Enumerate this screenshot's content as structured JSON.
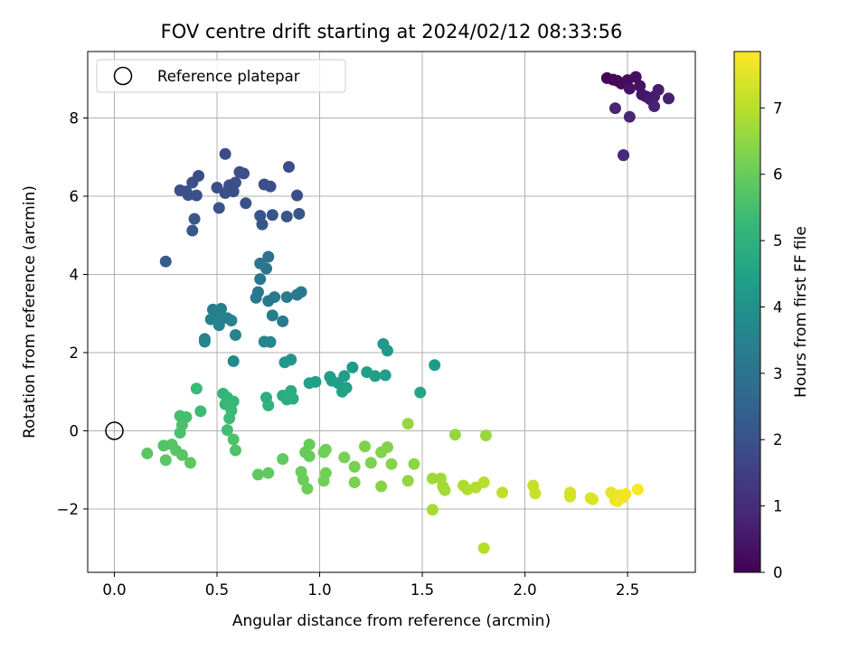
{
  "chart_data": {
    "type": "scatter",
    "title": "FOV centre drift starting at 2024/02/12 08:33:56",
    "xlabel": "Angular distance from reference (arcmin)",
    "ylabel": "Rotation from reference (arcmin)",
    "xlim": [
      -0.13,
      2.83
    ],
    "ylim": [
      -3.62,
      9.7
    ],
    "xticks": [
      0.0,
      0.5,
      1.0,
      1.5,
      2.0,
      2.5
    ],
    "xtick_labels": [
      "0.0",
      "0.5",
      "1.0",
      "1.5",
      "2.0",
      "2.5"
    ],
    "yticks": [
      -2,
      0,
      2,
      4,
      6,
      8
    ],
    "ytick_labels": [
      "−2",
      "0",
      "2",
      "4",
      "6",
      "8"
    ],
    "grid": true,
    "legend": {
      "placement": "top-left",
      "entries": [
        "Reference platepar"
      ]
    },
    "colorbar": {
      "label": "Hours from first FF file",
      "range": [
        0,
        7.85
      ],
      "ticks": [
        0,
        1,
        2,
        3,
        4,
        5,
        6,
        7
      ],
      "tick_labels": [
        "0",
        "1",
        "2",
        "3",
        "4",
        "5",
        "6",
        "7"
      ],
      "colormap": "viridis",
      "colors": [
        "#440154",
        "#482878",
        "#3e4989",
        "#31688e",
        "#26828e",
        "#1f9e89",
        "#35b779",
        "#6ece58",
        "#b5de2b",
        "#fde725"
      ]
    },
    "reference_point": {
      "x": 0.0,
      "y": 0.0
    },
    "points": [
      {
        "x": 2.4,
        "y": 9.02,
        "t": 0.05
      },
      {
        "x": 2.43,
        "y": 8.98,
        "t": 0.1
      },
      {
        "x": 2.45,
        "y": 8.95,
        "t": 0.15
      },
      {
        "x": 2.47,
        "y": 8.88,
        "t": 0.2
      },
      {
        "x": 2.5,
        "y": 8.97,
        "t": 0.25
      },
      {
        "x": 2.54,
        "y": 9.05,
        "t": 0.3
      },
      {
        "x": 2.56,
        "y": 8.82,
        "t": 0.35
      },
      {
        "x": 2.51,
        "y": 8.75,
        "t": 0.4
      },
      {
        "x": 2.57,
        "y": 8.6,
        "t": 0.45
      },
      {
        "x": 2.59,
        "y": 8.55,
        "t": 0.5
      },
      {
        "x": 2.61,
        "y": 8.48,
        "t": 0.55
      },
      {
        "x": 2.63,
        "y": 8.55,
        "t": 0.6
      },
      {
        "x": 2.65,
        "y": 8.72,
        "t": 0.65
      },
      {
        "x": 2.7,
        "y": 8.5,
        "t": 0.7
      },
      {
        "x": 2.63,
        "y": 8.3,
        "t": 0.75
      },
      {
        "x": 2.44,
        "y": 8.25,
        "t": 0.8
      },
      {
        "x": 2.51,
        "y": 8.03,
        "t": 0.85
      },
      {
        "x": 2.48,
        "y": 7.05,
        "t": 0.9
      },
      {
        "x": 2.48,
        "y": 7.05,
        "t": 0.95
      },
      {
        "x": 0.54,
        "y": 7.08,
        "t": 1.8
      },
      {
        "x": 0.61,
        "y": 6.62,
        "t": 1.85
      },
      {
        "x": 0.63,
        "y": 6.58,
        "t": 1.9
      },
      {
        "x": 0.85,
        "y": 6.75,
        "t": 1.85
      },
      {
        "x": 0.41,
        "y": 6.52,
        "t": 1.85
      },
      {
        "x": 0.38,
        "y": 6.35,
        "t": 1.9
      },
      {
        "x": 0.32,
        "y": 6.15,
        "t": 1.95
      },
      {
        "x": 0.35,
        "y": 6.12,
        "t": 1.95
      },
      {
        "x": 0.36,
        "y": 6.03,
        "t": 2.0
      },
      {
        "x": 0.4,
        "y": 6.02,
        "t": 2.0
      },
      {
        "x": 0.5,
        "y": 6.22,
        "t": 1.9
      },
      {
        "x": 0.54,
        "y": 6.08,
        "t": 1.95
      },
      {
        "x": 0.56,
        "y": 6.28,
        "t": 1.9
      },
      {
        "x": 0.58,
        "y": 6.12,
        "t": 1.95
      },
      {
        "x": 0.59,
        "y": 6.35,
        "t": 1.9
      },
      {
        "x": 0.73,
        "y": 6.3,
        "t": 1.9
      },
      {
        "x": 0.76,
        "y": 6.25,
        "t": 1.9
      },
      {
        "x": 0.89,
        "y": 6.02,
        "t": 1.95
      },
      {
        "x": 0.64,
        "y": 5.82,
        "t": 2.0
      },
      {
        "x": 0.51,
        "y": 5.7,
        "t": 2.05
      },
      {
        "x": 0.71,
        "y": 5.5,
        "t": 2.05
      },
      {
        "x": 0.77,
        "y": 5.52,
        "t": 2.05
      },
      {
        "x": 0.84,
        "y": 5.48,
        "t": 2.1
      },
      {
        "x": 0.9,
        "y": 5.55,
        "t": 2.1
      },
      {
        "x": 0.72,
        "y": 5.28,
        "t": 2.1
      },
      {
        "x": 0.39,
        "y": 5.42,
        "t": 2.1
      },
      {
        "x": 0.38,
        "y": 5.12,
        "t": 2.15
      },
      {
        "x": 0.25,
        "y": 4.33,
        "t": 2.25
      },
      {
        "x": 0.75,
        "y": 4.45,
        "t": 3.0
      },
      {
        "x": 0.71,
        "y": 4.28,
        "t": 3.05
      },
      {
        "x": 0.74,
        "y": 4.15,
        "t": 3.05
      },
      {
        "x": 0.71,
        "y": 3.88,
        "t": 3.1
      },
      {
        "x": 0.7,
        "y": 3.55,
        "t": 3.15
      },
      {
        "x": 0.69,
        "y": 3.4,
        "t": 3.2
      },
      {
        "x": 0.75,
        "y": 3.32,
        "t": 3.2
      },
      {
        "x": 0.78,
        "y": 3.42,
        "t": 3.2
      },
      {
        "x": 0.84,
        "y": 3.42,
        "t": 3.2
      },
      {
        "x": 0.89,
        "y": 3.48,
        "t": 3.2
      },
      {
        "x": 0.91,
        "y": 3.55,
        "t": 3.2
      },
      {
        "x": 0.77,
        "y": 2.95,
        "t": 3.3
      },
      {
        "x": 0.82,
        "y": 2.8,
        "t": 3.3
      },
      {
        "x": 0.48,
        "y": 3.1,
        "t": 3.4
      },
      {
        "x": 0.52,
        "y": 3.12,
        "t": 3.4
      },
      {
        "x": 0.47,
        "y": 2.85,
        "t": 3.45
      },
      {
        "x": 0.5,
        "y": 2.92,
        "t": 3.45
      },
      {
        "x": 0.51,
        "y": 2.7,
        "t": 3.5
      },
      {
        "x": 0.55,
        "y": 2.88,
        "t": 3.45
      },
      {
        "x": 0.57,
        "y": 2.82,
        "t": 3.5
      },
      {
        "x": 0.59,
        "y": 2.45,
        "t": 3.5
      },
      {
        "x": 0.44,
        "y": 2.35,
        "t": 3.55
      },
      {
        "x": 0.44,
        "y": 2.28,
        "t": 3.55
      },
      {
        "x": 0.73,
        "y": 2.28,
        "t": 3.6
      },
      {
        "x": 0.76,
        "y": 2.27,
        "t": 3.6
      },
      {
        "x": 0.58,
        "y": 1.78,
        "t": 3.7
      },
      {
        "x": 0.83,
        "y": 1.75,
        "t": 4.1
      },
      {
        "x": 0.86,
        "y": 1.82,
        "t": 4.1
      },
      {
        "x": 1.31,
        "y": 2.22,
        "t": 4.2
      },
      {
        "x": 1.33,
        "y": 2.05,
        "t": 4.2
      },
      {
        "x": 1.56,
        "y": 1.68,
        "t": 4.3
      },
      {
        "x": 1.16,
        "y": 1.62,
        "t": 4.3
      },
      {
        "x": 1.12,
        "y": 1.4,
        "t": 4.35
      },
      {
        "x": 1.05,
        "y": 1.38,
        "t": 4.35
      },
      {
        "x": 1.06,
        "y": 1.28,
        "t": 4.4
      },
      {
        "x": 1.09,
        "y": 1.22,
        "t": 4.4
      },
      {
        "x": 0.98,
        "y": 1.25,
        "t": 4.45
      },
      {
        "x": 0.95,
        "y": 1.22,
        "t": 4.45
      },
      {
        "x": 1.13,
        "y": 1.1,
        "t": 4.45
      },
      {
        "x": 1.11,
        "y": 1.0,
        "t": 4.5
      },
      {
        "x": 1.23,
        "y": 1.5,
        "t": 4.4
      },
      {
        "x": 1.27,
        "y": 1.4,
        "t": 4.4
      },
      {
        "x": 1.32,
        "y": 1.42,
        "t": 4.4
      },
      {
        "x": 1.49,
        "y": 0.98,
        "t": 4.6
      },
      {
        "x": 0.86,
        "y": 1.02,
        "t": 4.8
      },
      {
        "x": 0.82,
        "y": 0.9,
        "t": 4.85
      },
      {
        "x": 0.84,
        "y": 0.8,
        "t": 4.9
      },
      {
        "x": 0.87,
        "y": 0.82,
        "t": 4.9
      },
      {
        "x": 0.74,
        "y": 0.85,
        "t": 4.95
      },
      {
        "x": 0.75,
        "y": 0.65,
        "t": 5.0
      },
      {
        "x": 0.53,
        "y": 0.95,
        "t": 5.2
      },
      {
        "x": 0.55,
        "y": 0.85,
        "t": 5.2
      },
      {
        "x": 0.54,
        "y": 0.68,
        "t": 5.25
      },
      {
        "x": 0.58,
        "y": 0.75,
        "t": 5.25
      },
      {
        "x": 0.57,
        "y": 0.52,
        "t": 5.3
      },
      {
        "x": 0.56,
        "y": 0.32,
        "t": 5.35
      },
      {
        "x": 0.4,
        "y": 1.08,
        "t": 5.3
      },
      {
        "x": 0.42,
        "y": 0.5,
        "t": 5.35
      },
      {
        "x": 0.55,
        "y": 0.02,
        "t": 5.45
      },
      {
        "x": 0.32,
        "y": 0.38,
        "t": 5.5
      },
      {
        "x": 0.35,
        "y": 0.35,
        "t": 5.5
      },
      {
        "x": 0.33,
        "y": 0.15,
        "t": 5.55
      },
      {
        "x": 0.32,
        "y": -0.05,
        "t": 5.6
      },
      {
        "x": 0.58,
        "y": -0.22,
        "t": 5.6
      },
      {
        "x": 0.59,
        "y": -0.5,
        "t": 5.65
      },
      {
        "x": 0.24,
        "y": -0.38,
        "t": 5.7
      },
      {
        "x": 0.28,
        "y": -0.35,
        "t": 5.7
      },
      {
        "x": 0.3,
        "y": -0.5,
        "t": 5.75
      },
      {
        "x": 0.33,
        "y": -0.62,
        "t": 5.75
      },
      {
        "x": 0.16,
        "y": -0.58,
        "t": 5.8
      },
      {
        "x": 0.25,
        "y": -0.75,
        "t": 5.8
      },
      {
        "x": 0.37,
        "y": -0.82,
        "t": 5.85
      },
      {
        "x": 0.7,
        "y": -1.12,
        "t": 5.9
      },
      {
        "x": 0.75,
        "y": -1.08,
        "t": 5.9
      },
      {
        "x": 0.82,
        "y": -0.72,
        "t": 5.9
      },
      {
        "x": 0.95,
        "y": -0.35,
        "t": 6.0
      },
      {
        "x": 0.93,
        "y": -0.55,
        "t": 6.0
      },
      {
        "x": 0.95,
        "y": -0.65,
        "t": 6.0
      },
      {
        "x": 0.91,
        "y": -1.05,
        "t": 6.05
      },
      {
        "x": 0.92,
        "y": -1.25,
        "t": 6.05
      },
      {
        "x": 0.94,
        "y": -1.48,
        "t": 6.1
      },
      {
        "x": 1.02,
        "y": -0.55,
        "t": 6.1
      },
      {
        "x": 1.03,
        "y": -0.48,
        "t": 6.1
      },
      {
        "x": 1.03,
        "y": -1.08,
        "t": 6.15
      },
      {
        "x": 1.02,
        "y": -1.28,
        "t": 6.15
      },
      {
        "x": 1.12,
        "y": -0.68,
        "t": 6.2
      },
      {
        "x": 1.17,
        "y": -0.92,
        "t": 6.2
      },
      {
        "x": 1.17,
        "y": -1.32,
        "t": 6.25
      },
      {
        "x": 1.22,
        "y": -0.4,
        "t": 6.3
      },
      {
        "x": 1.25,
        "y": -0.82,
        "t": 6.3
      },
      {
        "x": 1.3,
        "y": -0.55,
        "t": 6.35
      },
      {
        "x": 1.33,
        "y": -0.42,
        "t": 6.35
      },
      {
        "x": 1.35,
        "y": -0.85,
        "t": 6.4
      },
      {
        "x": 1.3,
        "y": -1.42,
        "t": 6.4
      },
      {
        "x": 1.46,
        "y": -0.85,
        "t": 6.5
      },
      {
        "x": 1.43,
        "y": -1.28,
        "t": 6.55
      },
      {
        "x": 1.43,
        "y": 0.18,
        "t": 6.6
      },
      {
        "x": 1.66,
        "y": -0.1,
        "t": 6.6
      },
      {
        "x": 1.81,
        "y": -0.12,
        "t": 6.65
      },
      {
        "x": 1.55,
        "y": -1.22,
        "t": 6.7
      },
      {
        "x": 1.59,
        "y": -1.22,
        "t": 6.7
      },
      {
        "x": 1.6,
        "y": -1.42,
        "t": 6.75
      },
      {
        "x": 1.61,
        "y": -1.52,
        "t": 6.75
      },
      {
        "x": 1.55,
        "y": -2.02,
        "t": 6.8
      },
      {
        "x": 1.7,
        "y": -1.4,
        "t": 6.9
      },
      {
        "x": 1.72,
        "y": -1.5,
        "t": 6.9
      },
      {
        "x": 1.76,
        "y": -1.45,
        "t": 6.95
      },
      {
        "x": 1.8,
        "y": -1.32,
        "t": 7.0
      },
      {
        "x": 1.8,
        "y": -3.0,
        "t": 7.0
      },
      {
        "x": 1.89,
        "y": -1.58,
        "t": 7.1
      },
      {
        "x": 2.04,
        "y": -1.4,
        "t": 7.2
      },
      {
        "x": 2.05,
        "y": -1.6,
        "t": 7.2
      },
      {
        "x": 2.22,
        "y": -1.58,
        "t": 7.35
      },
      {
        "x": 2.22,
        "y": -1.68,
        "t": 7.35
      },
      {
        "x": 2.32,
        "y": -1.72,
        "t": 7.45
      },
      {
        "x": 2.33,
        "y": -1.75,
        "t": 7.45
      },
      {
        "x": 2.42,
        "y": -1.58,
        "t": 7.6
      },
      {
        "x": 2.44,
        "y": -1.78,
        "t": 7.6
      },
      {
        "x": 2.46,
        "y": -1.65,
        "t": 7.65
      },
      {
        "x": 2.48,
        "y": -1.7,
        "t": 7.65
      },
      {
        "x": 2.45,
        "y": -1.8,
        "t": 7.7
      },
      {
        "x": 2.49,
        "y": -1.62,
        "t": 7.7
      },
      {
        "x": 2.55,
        "y": -1.5,
        "t": 7.8
      }
    ]
  }
}
